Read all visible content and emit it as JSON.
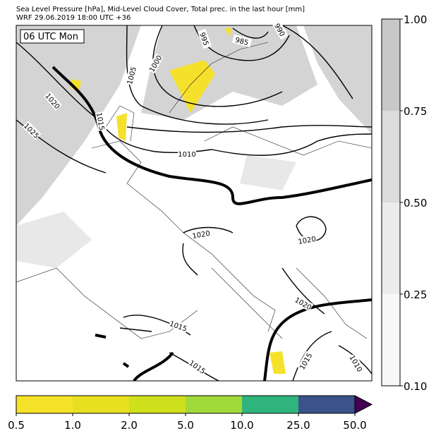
{
  "header": {
    "line1": "Sea Level Pressure [hPa], Mid-Level Cloud Cover, Total prec. in the last hour [mm]",
    "line2": "WRF 29.06.2019 18:00 UTC +36"
  },
  "map": {
    "time_label": "06 UTC Mon",
    "contour_labels": [
      "995",
      "985",
      "990",
      "1000",
      "1005",
      "1020",
      "1025",
      "1015",
      "1010",
      "1020",
      "1020",
      "1020",
      "1015",
      "1015",
      "1015",
      "1010"
    ]
  },
  "cloud_colorbar": {
    "ticks": [
      "1.00",
      "0.75",
      "0.50",
      "0.25",
      "0.10"
    ],
    "colors": [
      "#c8c8c8",
      "#dcdcdc",
      "#ececec",
      "#f7f7f7"
    ]
  },
  "precip_colorbar": {
    "ticks": [
      "0.5",
      "1.0",
      "2.0",
      "5.0",
      "10.0",
      "25.0",
      "50.0"
    ],
    "colors": [
      "#f7e22a",
      "#e8df20",
      "#cfe01c",
      "#a2d93a",
      "#2fb47c",
      "#3b528b"
    ],
    "extend_color": "#440154"
  }
}
